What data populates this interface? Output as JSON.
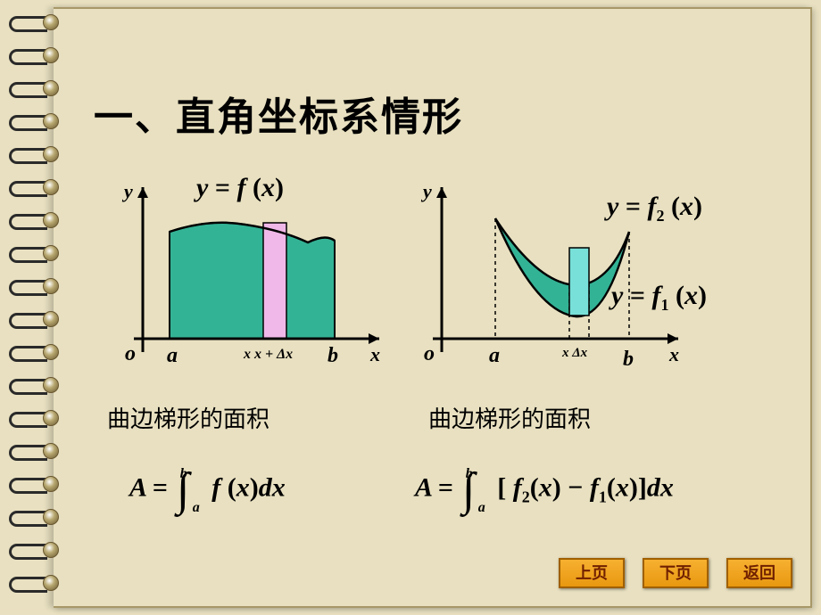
{
  "title": "一、直角坐标系情形",
  "left_chart": {
    "y_label": "y",
    "x_label": "x",
    "origin": "o",
    "a_label": "a",
    "b_label": "b",
    "strip_label1": "x",
    "strip_label2": "x + Δx",
    "curve_label": "y = f (x)",
    "fill_color": "#33b395",
    "strip_color": "#f0b8e8",
    "axis_color": "#000000",
    "label_fontsize": 22
  },
  "right_chart": {
    "y_label": "y",
    "x_label": "x",
    "origin": "o",
    "a_label": "a",
    "b_label": "b",
    "strip_label": "xΔx",
    "curve_label_top": "y = f₂ (x)",
    "curve_label_bot": "y = f₁ (x)",
    "fill_color": "#33b395",
    "strip_color": "#78e0d8",
    "axis_color": "#000000",
    "label_fontsize": 22
  },
  "caption_left": "曲边梯形的面积",
  "caption_right": "曲边梯形的面积",
  "formula_left": {
    "text": "A = ∫ f (x)dx",
    "lower": "a",
    "upper": "b"
  },
  "formula_right": {
    "text_pre": "A = ∫ [ f",
    "sub1": "2",
    "text_mid": "(x) − f",
    "sub2": "1",
    "text_post": "(x)]dx",
    "lower": "a",
    "upper": "b"
  },
  "nav": {
    "prev": "上页",
    "next": "下页",
    "back": "返回"
  },
  "colors": {
    "page_bg": "#e8e0c0",
    "btn_bg": "#f0a020",
    "btn_border": "#a06000"
  }
}
